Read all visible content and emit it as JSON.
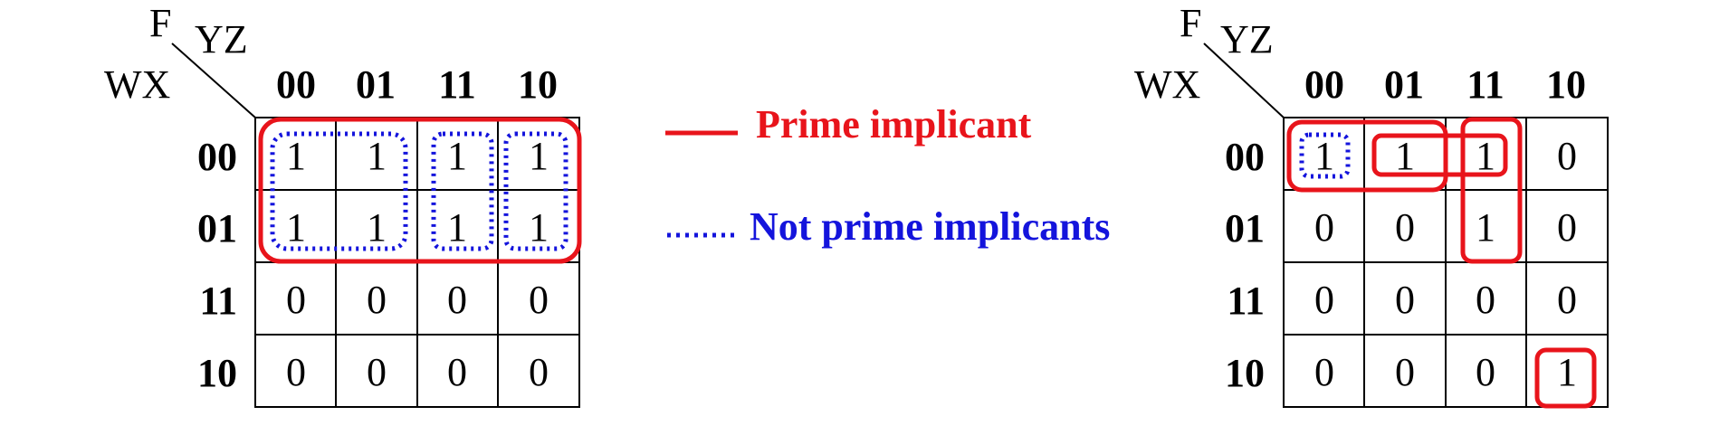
{
  "kmaps": [
    {
      "function_label": "F",
      "col_var_label": "YZ",
      "row_var_label": "WX",
      "col_headers": [
        "00",
        "01",
        "11",
        "10"
      ],
      "row_headers": [
        "00",
        "01",
        "11",
        "10"
      ],
      "cells": [
        [
          "1",
          "1",
          "1",
          "1"
        ],
        [
          "1",
          "1",
          "1",
          "1"
        ],
        [
          "0",
          "0",
          "0",
          "0"
        ],
        [
          "0",
          "0",
          "0",
          "0"
        ]
      ],
      "prime_implicant_groups": [
        {
          "rows": [
            0,
            1
          ],
          "cols": [
            0,
            1,
            2,
            3
          ]
        }
      ],
      "non_prime_groups": [
        {
          "rows": [
            0,
            1
          ],
          "cols": [
            0,
            1
          ]
        },
        {
          "rows": [
            0,
            1
          ],
          "cols": [
            2
          ]
        },
        {
          "rows": [
            0,
            1
          ],
          "cols": [
            3
          ]
        }
      ]
    },
    {
      "function_label": "F",
      "col_var_label": "YZ",
      "row_var_label": "WX",
      "col_headers": [
        "00",
        "01",
        "11",
        "10"
      ],
      "row_headers": [
        "00",
        "01",
        "11",
        "10"
      ],
      "cells": [
        [
          "1",
          "1",
          "1",
          "0"
        ],
        [
          "0",
          "0",
          "1",
          "0"
        ],
        [
          "0",
          "0",
          "0",
          "0"
        ],
        [
          "0",
          "0",
          "0",
          "1"
        ]
      ],
      "prime_implicant_groups": [
        {
          "rows": [
            0
          ],
          "cols": [
            0,
            1
          ]
        },
        {
          "rows": [
            0
          ],
          "cols": [
            1,
            2
          ]
        },
        {
          "rows": [
            0,
            1
          ],
          "cols": [
            2
          ]
        },
        {
          "rows": [
            3
          ],
          "cols": [
            3
          ]
        }
      ],
      "non_prime_groups": [
        {
          "rows": [
            0
          ],
          "cols": [
            0
          ]
        }
      ]
    }
  ],
  "legend": {
    "prime_label": "Prime implicant",
    "nonprime_label": "Not prime implicants",
    "prime_color": "#e8141b",
    "nonprime_color": "#1414dc"
  },
  "line_color": "#000000"
}
